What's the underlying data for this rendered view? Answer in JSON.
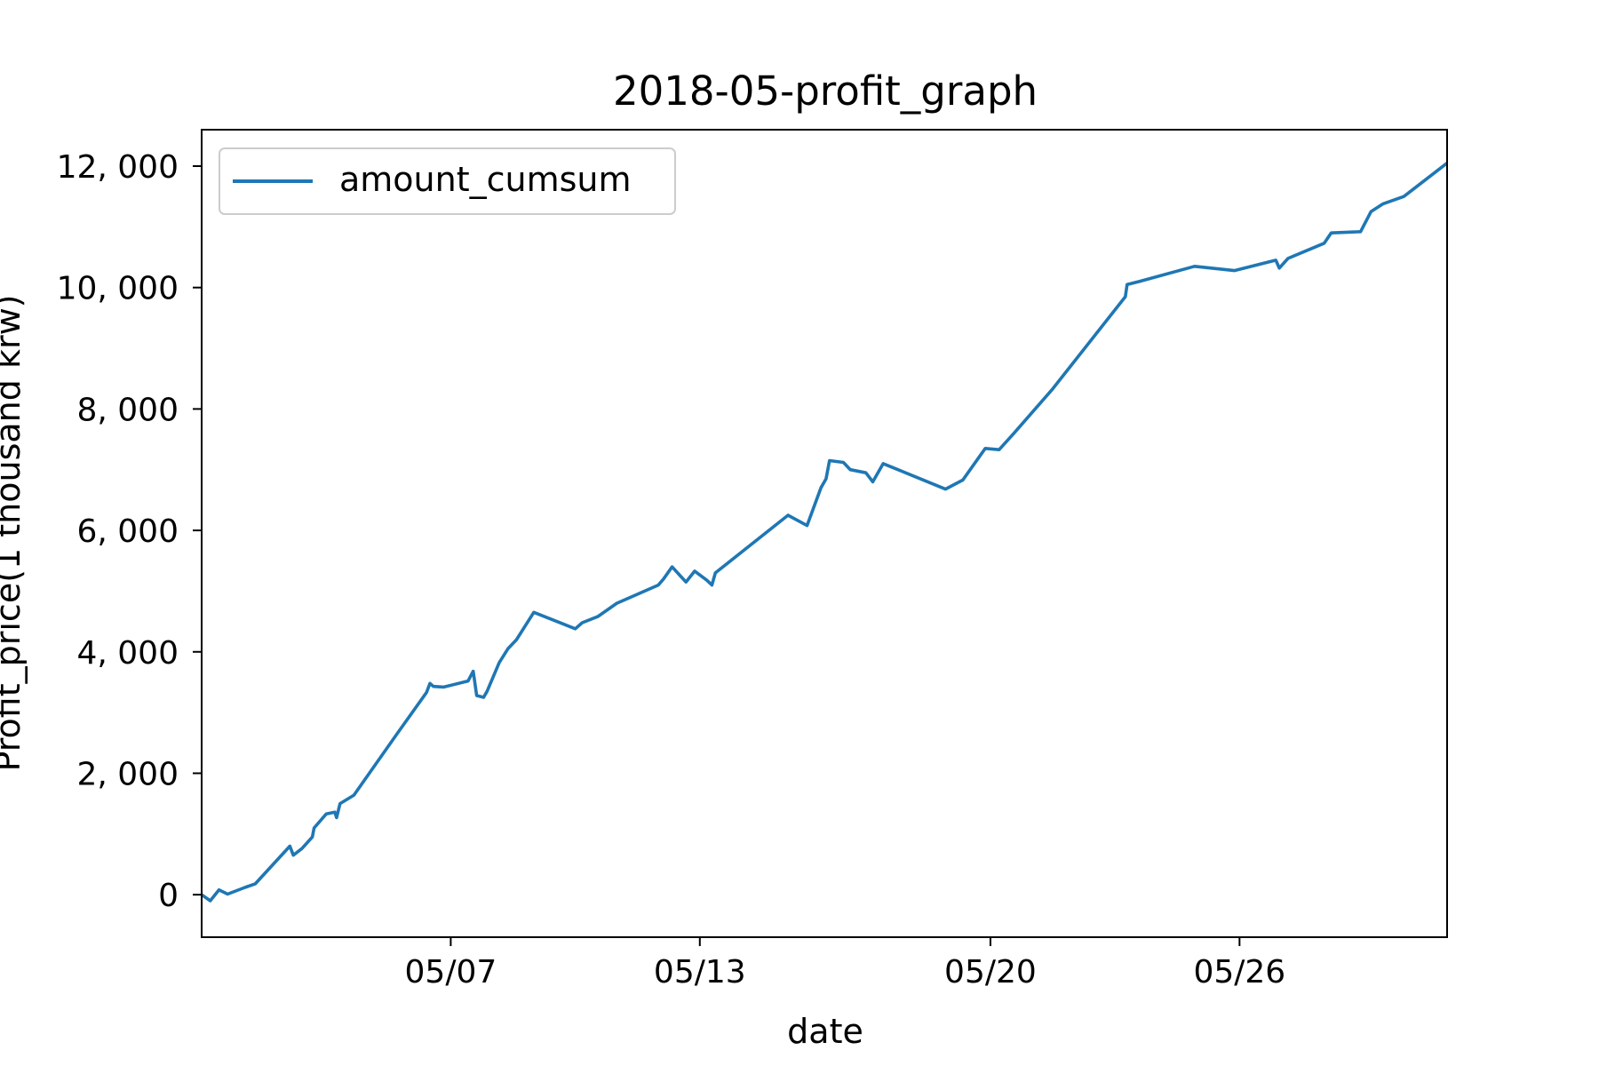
{
  "chart_data": {
    "type": "line",
    "title": "2018-05-profit_graph",
    "xlabel": "date",
    "ylabel": "Profit_price(1 thousand krw)",
    "xlim": [
      "2018-05-01",
      "2018-05-31"
    ],
    "ylim": [
      -700,
      12600
    ],
    "x_ticks": [
      {
        "date": "2018-05-07",
        "label": "05/07"
      },
      {
        "date": "2018-05-13",
        "label": "05/13"
      },
      {
        "date": "2018-05-20",
        "label": "05/20"
      },
      {
        "date": "2018-05-26",
        "label": "05/26"
      }
    ],
    "y_ticks": [
      {
        "value": 0,
        "label": "0"
      },
      {
        "value": 2000,
        "label": "2, 000"
      },
      {
        "value": 4000,
        "label": "4, 000"
      },
      {
        "value": 6000,
        "label": "6, 000"
      },
      {
        "value": 8000,
        "label": "8, 000"
      },
      {
        "value": 10000,
        "label": "10, 000"
      },
      {
        "value": 12000,
        "label": "12, 000"
      }
    ],
    "grid": false,
    "legend": {
      "position": "top-left"
    },
    "series": [
      {
        "name": "amount_cumsum",
        "color": "#1f77b4",
        "points": [
          [
            "2018-05-01T00:00",
            0
          ],
          [
            "2018-05-01T05:00",
            -100
          ],
          [
            "2018-05-01T10:00",
            80
          ],
          [
            "2018-05-01T15:00",
            10
          ],
          [
            "2018-05-02T01:00",
            120
          ],
          [
            "2018-05-02T07:00",
            180
          ],
          [
            "2018-05-03T03:00",
            800
          ],
          [
            "2018-05-03T05:00",
            650
          ],
          [
            "2018-05-03T10:00",
            760
          ],
          [
            "2018-05-03T16:00",
            950
          ],
          [
            "2018-05-03T17:00",
            1100
          ],
          [
            "2018-05-04T00:00",
            1330
          ],
          [
            "2018-05-04T05:00",
            1360
          ],
          [
            "2018-05-04T06:00",
            1270
          ],
          [
            "2018-05-04T08:00",
            1500
          ],
          [
            "2018-05-04T16:00",
            1640
          ],
          [
            "2018-05-05T17:00",
            2650
          ],
          [
            "2018-05-06T10:00",
            3330
          ],
          [
            "2018-05-06T12:00",
            3480
          ],
          [
            "2018-05-06T14:00",
            3430
          ],
          [
            "2018-05-06T20:00",
            3420
          ],
          [
            "2018-05-07T10:00",
            3520
          ],
          [
            "2018-05-07T13:00",
            3680
          ],
          [
            "2018-05-07T15:00",
            3280
          ],
          [
            "2018-05-07T19:00",
            3250
          ],
          [
            "2018-05-07T21:00",
            3350
          ],
          [
            "2018-05-08T04:00",
            3820
          ],
          [
            "2018-05-08T09:00",
            4050
          ],
          [
            "2018-05-08T14:00",
            4200
          ],
          [
            "2018-05-09T00:00",
            4650
          ],
          [
            "2018-05-10T00:00",
            4380
          ],
          [
            "2018-05-10T04:00",
            4480
          ],
          [
            "2018-05-10T13:00",
            4580
          ],
          [
            "2018-05-11T00:00",
            4800
          ],
          [
            "2018-05-12T00:00",
            5100
          ],
          [
            "2018-05-12T03:00",
            5200
          ],
          [
            "2018-05-12T08:00",
            5400
          ],
          [
            "2018-05-12T16:00",
            5150
          ],
          [
            "2018-05-12T21:00",
            5330
          ],
          [
            "2018-05-13T04:00",
            5180
          ],
          [
            "2018-05-13T07:00",
            5100
          ],
          [
            "2018-05-13T09:00",
            5300
          ],
          [
            "2018-05-15T03:00",
            6250
          ],
          [
            "2018-05-15T14:00",
            6080
          ],
          [
            "2018-05-15T22:00",
            6700
          ],
          [
            "2018-05-16T01:00",
            6850
          ],
          [
            "2018-05-16T03:00",
            7150
          ],
          [
            "2018-05-16T11:00",
            7120
          ],
          [
            "2018-05-16T15:00",
            7000
          ],
          [
            "2018-05-17T00:00",
            6950
          ],
          [
            "2018-05-17T04:00",
            6800
          ],
          [
            "2018-05-17T10:00",
            7100
          ],
          [
            "2018-05-18T22:00",
            6680
          ],
          [
            "2018-05-19T08:00",
            6830
          ],
          [
            "2018-05-19T21:00",
            7350
          ],
          [
            "2018-05-20T05:00",
            7330
          ],
          [
            "2018-05-20T13:00",
            7580
          ],
          [
            "2018-05-21T12:00",
            8330
          ],
          [
            "2018-05-23T06:00",
            9850
          ],
          [
            "2018-05-23T07:00",
            10050
          ],
          [
            "2018-05-23T14:00",
            10100
          ],
          [
            "2018-05-24T22:00",
            10350
          ],
          [
            "2018-05-25T21:00",
            10280
          ],
          [
            "2018-05-26T21:00",
            10450
          ],
          [
            "2018-05-26T23:00",
            10320
          ],
          [
            "2018-05-27T04:00",
            10480
          ],
          [
            "2018-05-28T01:00",
            10730
          ],
          [
            "2018-05-28T05:00",
            10900
          ],
          [
            "2018-05-28T22:00",
            10920
          ],
          [
            "2018-05-29T04:00",
            11250
          ],
          [
            "2018-05-29T11:00",
            11380
          ],
          [
            "2018-05-29T23:00",
            11500
          ],
          [
            "2018-05-31T00:00",
            12050
          ]
        ]
      }
    ]
  }
}
